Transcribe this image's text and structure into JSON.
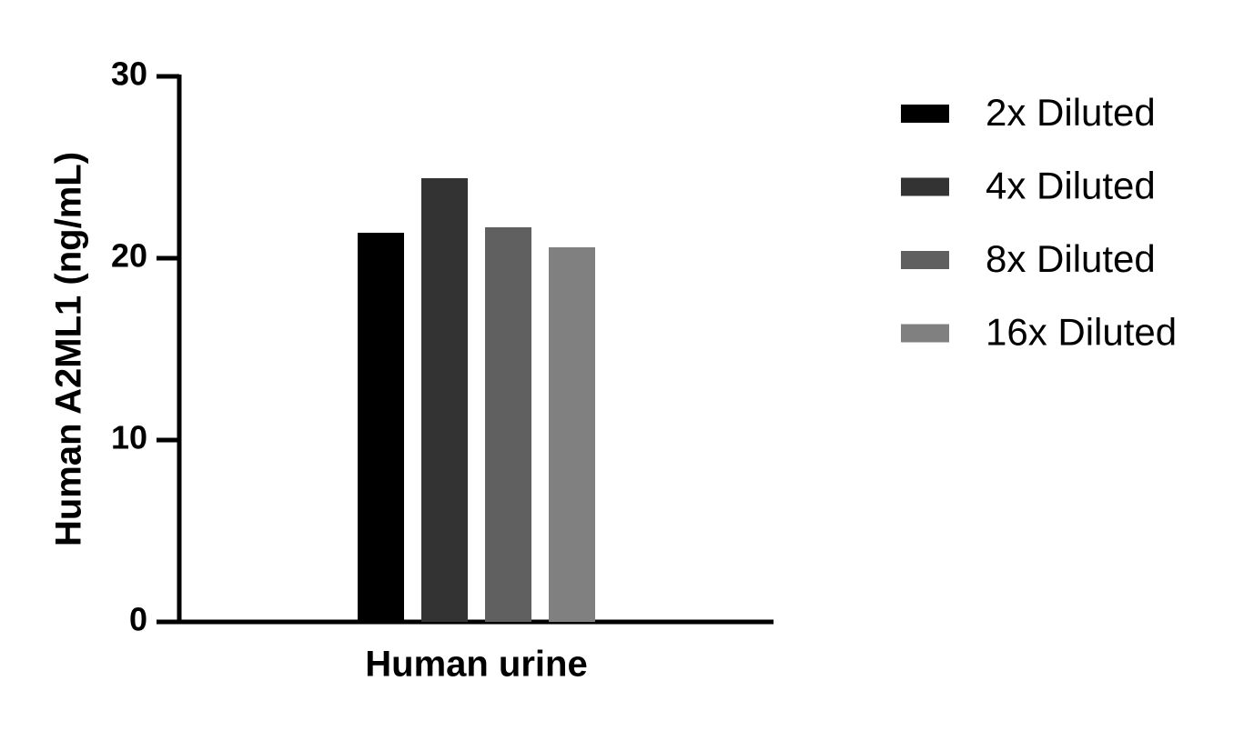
{
  "chart_data": {
    "type": "bar",
    "y_label": "Human A2ML1 (ng/mL)",
    "categories": [
      "Human urine"
    ],
    "series": [
      {
        "name": "2x Diluted",
        "color": "#000000",
        "values": [
          21.4
        ]
      },
      {
        "name": "4x Diluted",
        "color": "#333333",
        "values": [
          24.4
        ]
      },
      {
        "name": "8x Diluted",
        "color": "#606060",
        "values": [
          21.7
        ]
      },
      {
        "name": "16x Diluted",
        "color": "#808080",
        "values": [
          20.6
        ]
      }
    ],
    "ylim": [
      0,
      30
    ],
    "yticks": [
      0,
      10,
      20,
      30
    ],
    "grid": false,
    "legend": "right"
  }
}
